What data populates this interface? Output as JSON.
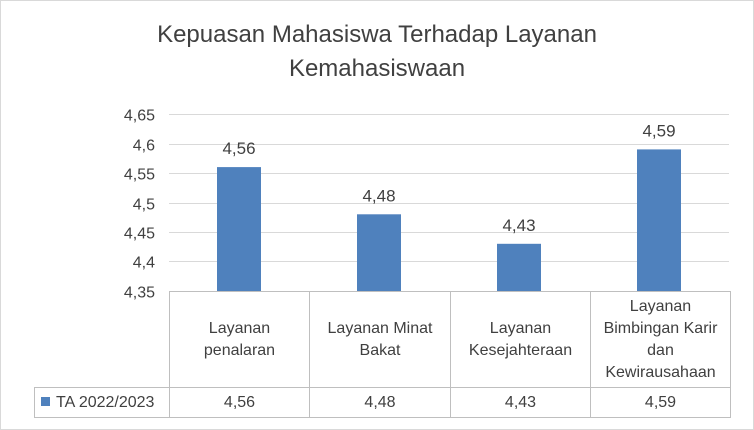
{
  "chart_data": {
    "type": "bar",
    "title": "Kepuasan Mahasiswa Terhadap Layanan Kemahasiswaan",
    "title_lines": [
      "Kepuasan Mahasiswa Terhadap Layanan",
      "Kemahasiswaan"
    ],
    "categories": [
      "Layanan penalaran",
      "Layanan Minat Bakat",
      "Layanan Kesejahteraan",
      "Layanan Bimbingan Karir dan Kewirausahaan"
    ],
    "series": [
      {
        "name": "TA 2022/2023",
        "values": [
          4.56,
          4.48,
          4.43,
          4.59
        ],
        "color": "#4f81bd"
      }
    ],
    "data_labels": [
      "4,56",
      "4,48",
      "4,43",
      "4,59"
    ],
    "ylim": [
      4.35,
      4.65
    ],
    "yticks": [
      4.35,
      4.4,
      4.45,
      4.5,
      4.55,
      4.6,
      4.65
    ],
    "ytick_labels": [
      "4,35",
      "4,4",
      "4,45",
      "4,5",
      "4,55",
      "4,6",
      "4,65"
    ],
    "grid": true,
    "legend_placement": "data-table",
    "data_table": true,
    "xlabel": "",
    "ylabel": ""
  }
}
